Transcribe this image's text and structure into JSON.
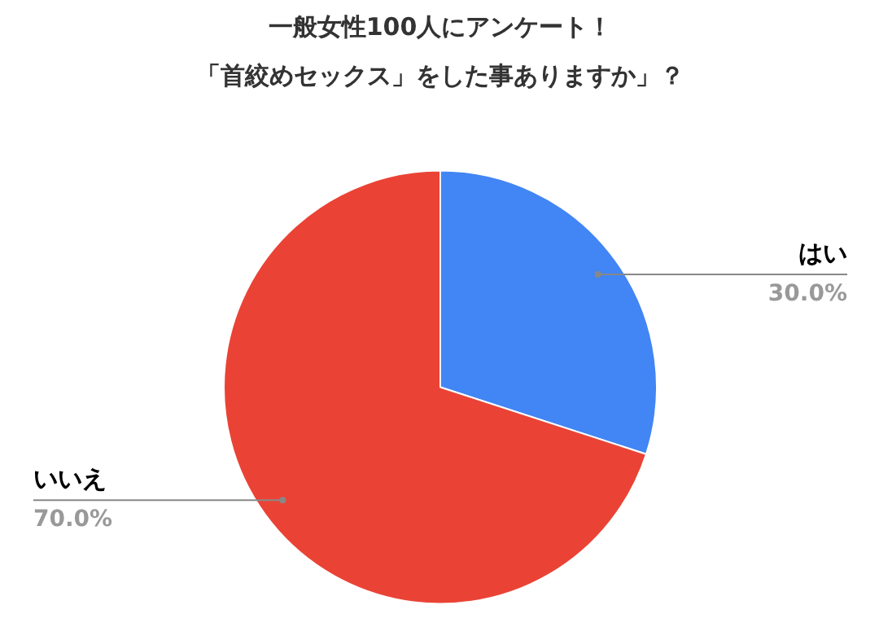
{
  "chart_data": {
    "type": "pie",
    "title": "一般女性100人にアンケート！",
    "subtitle": "「首絞めセックス」をした事ありますか」？",
    "categories": [
      "はい",
      "いいえ"
    ],
    "values": [
      30,
      70
    ],
    "value_labels": [
      "30.0%",
      "70.0%"
    ],
    "colors": [
      "#4285f4",
      "#ea4335"
    ]
  }
}
